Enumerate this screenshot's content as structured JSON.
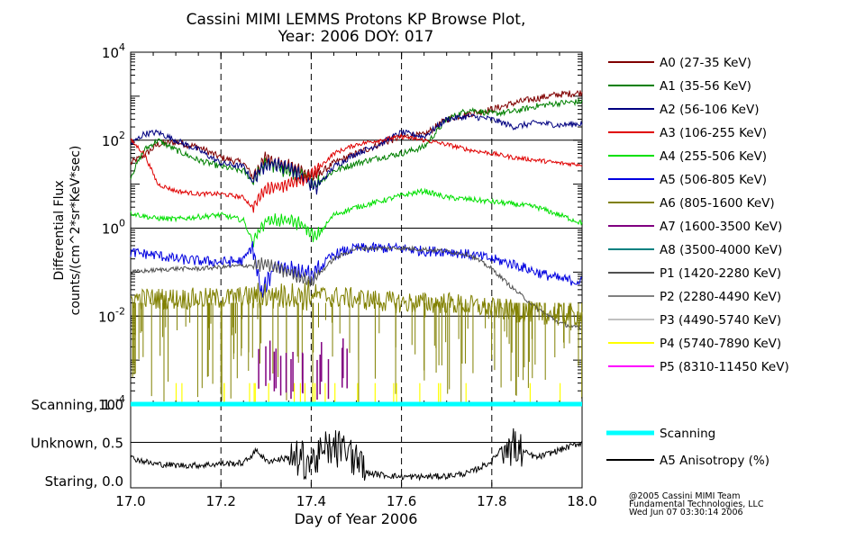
{
  "chart_data": [
    {
      "type": "line",
      "title": "Cassini MIMI LEMMS Protons KP Browse Plot,",
      "subtitle": "Year: 2006 DOY: 017",
      "xlabel": "",
      "ylabel_line1": "Differential Flux",
      "ylabel_line2": "counts/(cm^2*sr*KeV*sec)",
      "yscale": "log",
      "ylim": [
        0.0001,
        10000
      ],
      "xlim": [
        17.0,
        18.0
      ],
      "x_gridlines": [
        17.2,
        17.4,
        17.6,
        17.8
      ],
      "y_gridlines": [
        0.01,
        1,
        100
      ],
      "ytick_labels": [
        {
          "base": "10",
          "exp": "4"
        },
        {
          "base": "10",
          "exp": "2"
        },
        {
          "base": "10",
          "exp": "0"
        },
        {
          "base": "10",
          "exp": "-2"
        },
        {
          "base": "10",
          "exp": "-4"
        }
      ],
      "legend": [
        {
          "label": "A0 (27-35 KeV)",
          "color": "#800000"
        },
        {
          "label": "A1 (35-56 KeV)",
          "color": "#008000"
        },
        {
          "label": "A2 (56-106 KeV)",
          "color": "#000080"
        },
        {
          "label": "A3 (106-255 KeV)",
          "color": "#e00000"
        },
        {
          "label": "A4 (255-506 KeV)",
          "color": "#00e000"
        },
        {
          "label": "A5 (506-805 KeV)",
          "color": "#0000e0"
        },
        {
          "label": "A6 (805-1600 KeV)",
          "color": "#808000"
        },
        {
          "label": "A7 (1600-3500 KeV)",
          "color": "#800080"
        },
        {
          "label": "A8 (3500-4000 KeV)",
          "color": "#008080"
        },
        {
          "label": "P1 (1420-2280 KeV)",
          "color": "#505050"
        },
        {
          "label": "P2 (2280-4490 KeV)",
          "color": "#808080"
        },
        {
          "label": "P3 (4490-5740 KeV)",
          "color": "#c0c0c0"
        },
        {
          "label": "P4 (5740-7890 KeV)",
          "color": "#ffff00"
        },
        {
          "label": "P5 (8310-11450 KeV)",
          "color": "#ff00ff"
        }
      ],
      "series": [
        {
          "name": "A0",
          "color": "#800000",
          "noise": 0.08,
          "x": [
            17.0,
            17.03,
            17.06,
            17.1,
            17.15,
            17.2,
            17.25,
            17.27,
            17.3,
            17.35,
            17.38,
            17.41,
            17.45,
            17.5,
            17.55,
            17.6,
            17.65,
            17.7,
            17.75,
            17.8,
            17.85,
            17.9,
            17.95,
            18.0
          ],
          "y": [
            30,
            45,
            80,
            90,
            70,
            40,
            30,
            15,
            40,
            25,
            20,
            15,
            30,
            50,
            80,
            120,
            130,
            300,
            400,
            500,
            700,
            900,
            1100,
            1200
          ]
        },
        {
          "name": "A1",
          "color": "#008000",
          "noise": 0.07,
          "x": [
            17.0,
            17.03,
            17.06,
            17.1,
            17.15,
            17.2,
            17.25,
            17.27,
            17.3,
            17.35,
            17.38,
            17.41,
            17.45,
            17.5,
            17.55,
            17.6,
            17.65,
            17.7,
            17.75,
            17.8,
            17.85,
            17.9,
            17.95,
            18.0
          ],
          "y": [
            15,
            60,
            100,
            60,
            35,
            25,
            20,
            12,
            30,
            20,
            15,
            10,
            20,
            30,
            40,
            50,
            70,
            300,
            500,
            400,
            450,
            600,
            700,
            750
          ]
        },
        {
          "name": "A2",
          "color": "#000080",
          "noise": 0.07,
          "x": [
            17.0,
            17.03,
            17.06,
            17.1,
            17.15,
            17.2,
            17.25,
            17.27,
            17.3,
            17.35,
            17.38,
            17.41,
            17.45,
            17.5,
            17.55,
            17.6,
            17.65,
            17.7,
            17.75,
            17.8,
            17.85,
            17.9,
            17.95,
            18.0
          ],
          "y": [
            80,
            140,
            150,
            100,
            60,
            30,
            25,
            12,
            30,
            25,
            15,
            8,
            25,
            50,
            80,
            150,
            120,
            300,
            350,
            300,
            200,
            250,
            220,
            240
          ]
        },
        {
          "name": "A3",
          "color": "#e00000",
          "noise": 0.05,
          "x": [
            17.0,
            17.03,
            17.06,
            17.1,
            17.15,
            17.2,
            17.25,
            17.27,
            17.3,
            17.35,
            17.38,
            17.41,
            17.45,
            17.5,
            17.55,
            17.6,
            17.65,
            17.7,
            17.75,
            17.8,
            17.85,
            17.9,
            17.95,
            18.0
          ],
          "y": [
            100,
            50,
            10,
            7,
            6,
            6,
            5,
            3,
            8,
            10,
            12,
            20,
            50,
            80,
            100,
            120,
            100,
            80,
            60,
            50,
            40,
            35,
            30,
            28
          ]
        },
        {
          "name": "A4",
          "color": "#00e000",
          "noise": 0.06,
          "x": [
            17.0,
            17.05,
            17.1,
            17.15,
            17.2,
            17.25,
            17.27,
            17.3,
            17.35,
            17.38,
            17.41,
            17.45,
            17.5,
            17.55,
            17.6,
            17.65,
            17.7,
            17.75,
            17.8,
            17.85,
            17.9,
            17.95,
            18.0
          ],
          "y": [
            2.2,
            1.7,
            1.6,
            1.8,
            2.0,
            1.5,
            0.5,
            1.5,
            1.5,
            1.2,
            0.6,
            2.0,
            3.0,
            4.0,
            5.5,
            7.0,
            5.0,
            4.5,
            4.0,
            3.5,
            3.0,
            2.0,
            1.3
          ]
        },
        {
          "name": "A5",
          "color": "#0000e0",
          "noise": 0.12,
          "x": [
            17.0,
            17.05,
            17.1,
            17.15,
            17.2,
            17.25,
            17.27,
            17.29,
            17.32,
            17.35,
            17.38,
            17.4,
            17.45,
            17.5,
            17.55,
            17.6,
            17.65,
            17.7,
            17.75,
            17.8,
            17.85,
            17.9,
            17.95,
            18.0
          ],
          "y": [
            0.28,
            0.25,
            0.2,
            0.18,
            0.17,
            0.18,
            0.4,
            0.03,
            0.15,
            0.12,
            0.1,
            0.08,
            0.25,
            0.35,
            0.35,
            0.35,
            0.3,
            0.3,
            0.25,
            0.2,
            0.15,
            0.1,
            0.07,
            0.06
          ]
        },
        {
          "name": "A6",
          "color": "#808000",
          "noise": 0.25,
          "x": [
            17.0,
            17.1,
            17.2,
            17.3,
            17.4,
            17.5,
            17.6,
            17.7,
            17.8,
            17.9,
            18.0
          ],
          "y": [
            0.025,
            0.025,
            0.025,
            0.03,
            0.03,
            0.025,
            0.02,
            0.02,
            0.015,
            0.012,
            0.01
          ]
        },
        {
          "name": "P1",
          "color": "#505050",
          "noise": 0.05,
          "x": [
            17.0,
            17.05,
            17.1,
            17.15,
            17.2,
            17.25,
            17.3,
            17.35,
            17.4,
            17.45,
            17.5,
            17.55,
            17.6,
            17.65,
            17.7,
            17.75,
            17.8,
            17.85,
            17.9,
            17.95,
            18.0
          ],
          "y": [
            0.1,
            0.11,
            0.12,
            0.12,
            0.13,
            0.14,
            0.15,
            0.1,
            0.06,
            0.2,
            0.35,
            0.35,
            0.35,
            0.33,
            0.3,
            0.25,
            0.12,
            0.04,
            0.015,
            0.007,
            0.005
          ]
        }
      ],
      "line_break_annotations": [
        17.47,
        17.5
      ]
    },
    {
      "type": "line",
      "title": "",
      "xlabel": "Day of Year 2006",
      "ylim": [
        0.0,
        1.0
      ],
      "xlim": [
        17.0,
        18.0
      ],
      "xtick_labels": [
        "17.0",
        "17.2",
        "17.4",
        "17.6",
        "17.8",
        "18.0"
      ],
      "ytick_labels": [
        "Scanning, 1.0",
        "Unknown, 0.5",
        "Staring, 0.0"
      ],
      "legend": [
        {
          "label": "Scanning",
          "color": "#00ffff"
        },
        {
          "label": "A5 Anisotropy (%)",
          "color": "#000000"
        }
      ],
      "series": [
        {
          "name": "Scanning",
          "color": "#00ffff",
          "noise": 0,
          "x": [
            17.0,
            18.0
          ],
          "y": [
            1.0,
            1.0
          ]
        },
        {
          "name": "A5 Anisotropy",
          "color": "#000000",
          "noise": 0.04,
          "x": [
            17.0,
            17.05,
            17.1,
            17.15,
            17.2,
            17.25,
            17.28,
            17.3,
            17.35,
            17.4,
            17.45,
            17.5,
            17.52,
            17.55,
            17.6,
            17.65,
            17.7,
            17.75,
            17.8,
            17.83,
            17.86,
            17.9,
            17.95,
            18.0
          ],
          "y": [
            0.3,
            0.22,
            0.2,
            0.2,
            0.22,
            0.23,
            0.4,
            0.25,
            0.3,
            0.25,
            0.45,
            0.3,
            0.1,
            0.08,
            0.05,
            0.05,
            0.06,
            0.1,
            0.25,
            0.5,
            0.4,
            0.3,
            0.4,
            0.5
          ]
        }
      ]
    }
  ],
  "footer": {
    "line1": "@2005 Cassini MIMI Team",
    "line2": "Fundamental Technologies, LLC",
    "line3": "Wed Jun 07 03:30:14 2006"
  }
}
